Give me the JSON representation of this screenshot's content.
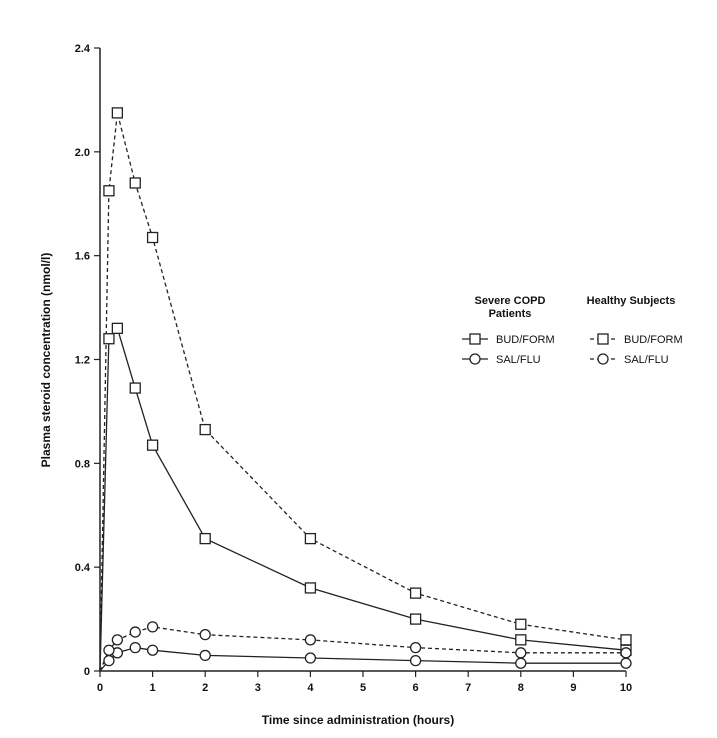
{
  "chart_data": {
    "type": "line",
    "title": "",
    "xlabel": "Time since administration (hours)",
    "ylabel": "Plasma steroid concentration (nmol/l)",
    "xlim": [
      0,
      10
    ],
    "ylim": [
      0,
      2.4
    ],
    "x_ticks": [
      "0",
      "1",
      "2",
      "3",
      "4",
      "5",
      "6",
      "7",
      "8",
      "9",
      "10"
    ],
    "y_ticks": [
      "0",
      "0.4",
      "0.8",
      "1.2",
      "1.6",
      "2.0",
      "2.4"
    ],
    "grid": false,
    "legend": {
      "placement": "right",
      "group_headers": [
        "Severe COPD\nPatients",
        "Healthy Subjects"
      ],
      "entries": [
        "BUD/FORM",
        "SAL/FLU",
        "BUD/FORM",
        "SAL/FLU"
      ]
    },
    "series": [
      {
        "name": "BUD/FORM",
        "group": "Severe COPD Patients",
        "marker": "square",
        "line_style": "solid",
        "x": [
          0,
          0.17,
          0.33,
          0.67,
          1,
          2,
          4,
          6,
          8,
          10
        ],
        "y": [
          0,
          1.28,
          1.32,
          1.09,
          0.87,
          0.51,
          0.32,
          0.2,
          0.12,
          0.08
        ]
      },
      {
        "name": "SAL/FLU",
        "group": "Severe COPD Patients",
        "marker": "circle",
        "line_style": "solid",
        "x": [
          0,
          0.17,
          0.33,
          0.67,
          1,
          2,
          4,
          6,
          8,
          10
        ],
        "y": [
          0,
          0.04,
          0.07,
          0.09,
          0.08,
          0.06,
          0.05,
          0.04,
          0.03,
          0.03
        ]
      },
      {
        "name": "BUD/FORM",
        "group": "Healthy Subjects",
        "marker": "square",
        "line_style": "dashed",
        "x": [
          0,
          0.17,
          0.33,
          0.67,
          1,
          2,
          4,
          6,
          8,
          10
        ],
        "y": [
          0,
          1.85,
          2.15,
          1.88,
          1.67,
          0.93,
          0.51,
          0.3,
          0.18,
          0.12
        ]
      },
      {
        "name": "SAL/FLU",
        "group": "Healthy Subjects",
        "marker": "circle",
        "line_style": "dashed",
        "x": [
          0,
          0.17,
          0.33,
          0.67,
          1,
          2,
          4,
          6,
          8,
          10
        ],
        "y": [
          0,
          0.08,
          0.12,
          0.15,
          0.17,
          0.14,
          0.12,
          0.09,
          0.07,
          0.07
        ]
      }
    ]
  }
}
